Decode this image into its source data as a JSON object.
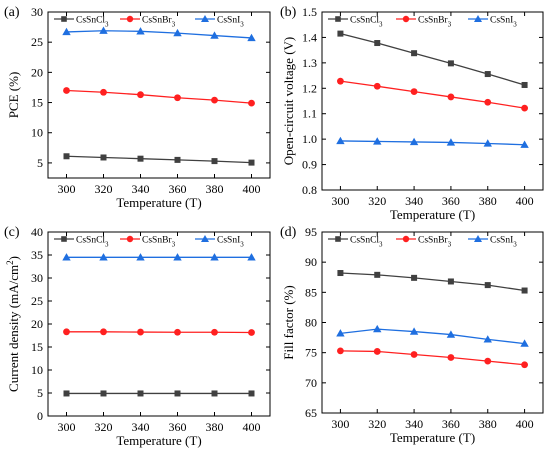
{
  "chart_data": [
    {
      "type": "line",
      "panel_label": "(a)",
      "xlabel": "Temperature (T)",
      "ylabel": "PCE (%)",
      "x": [
        300,
        320,
        340,
        360,
        380,
        400
      ],
      "xticks": [
        300,
        320,
        340,
        360,
        380,
        400
      ],
      "xlim": [
        290,
        410
      ],
      "ylim": [
        2.5,
        30
      ],
      "yticks": [
        5,
        10,
        15,
        20,
        25,
        30
      ],
      "ytick_labels": [
        "5",
        "10",
        "15",
        "20",
        "25",
        "30"
      ],
      "legend": "top",
      "series": [
        {
          "name": "CsSnCl",
          "sub": "3",
          "color": "#404040",
          "marker": "square",
          "values": [
            6.1,
            5.9,
            5.7,
            5.5,
            5.3,
            5.05
          ]
        },
        {
          "name": "CsSnBr",
          "sub": "3",
          "color": "#ff2020",
          "marker": "circle",
          "values": [
            17.0,
            16.7,
            16.3,
            15.8,
            15.4,
            14.9
          ]
        },
        {
          "name": "CsSnI",
          "sub": "3",
          "color": "#1f6fe0",
          "marker": "triangle",
          "values": [
            26.7,
            26.9,
            26.8,
            26.5,
            26.1,
            25.7
          ]
        }
      ]
    },
    {
      "type": "line",
      "panel_label": "(b)",
      "xlabel": "Temperature (T)",
      "ylabel": "Open-circuit voltage (V)",
      "x": [
        300,
        320,
        340,
        360,
        380,
        400
      ],
      "xticks": [
        300,
        320,
        340,
        360,
        380,
        400
      ],
      "xlim": [
        290,
        410
      ],
      "ylim": [
        0.8,
        1.5
      ],
      "yticks": [
        0.8,
        0.9,
        1.0,
        1.1,
        1.2,
        1.3,
        1.4,
        1.5
      ],
      "ytick_labels": [
        "0.8",
        "0.9",
        "1.0",
        "1.1",
        "1.2",
        "1.3",
        "1.4",
        "1.5"
      ],
      "legend": "top",
      "series": [
        {
          "name": "CsSnCl",
          "sub": "3",
          "color": "#404040",
          "marker": "square",
          "values": [
            1.415,
            1.378,
            1.338,
            1.298,
            1.256,
            1.213
          ]
        },
        {
          "name": "CsSnBr",
          "sub": "3",
          "color": "#ff2020",
          "marker": "circle",
          "values": [
            1.228,
            1.208,
            1.187,
            1.166,
            1.145,
            1.122
          ]
        },
        {
          "name": "CsSnI",
          "sub": "3",
          "color": "#1f6fe0",
          "marker": "triangle",
          "values": [
            0.993,
            0.991,
            0.989,
            0.987,
            0.983,
            0.978
          ]
        }
      ]
    },
    {
      "type": "line",
      "panel_label": "(c)",
      "xlabel": "Temperature (T)",
      "ylabel": "Current density (mA/cm",
      "ylabel_sup": "2",
      "ylabel_end": ")",
      "x": [
        300,
        320,
        340,
        360,
        380,
        400
      ],
      "xticks": [
        300,
        320,
        340,
        360,
        380,
        400
      ],
      "xlim": [
        290,
        410
      ],
      "ylim": [
        0,
        40
      ],
      "yticks": [
        0,
        5,
        10,
        15,
        20,
        25,
        30,
        35,
        40
      ],
      "ytick_labels": [
        "0",
        "5",
        "10",
        "15",
        "20",
        "25",
        "30",
        "35",
        "40"
      ],
      "legend": "top",
      "series": [
        {
          "name": "CsSnCl",
          "sub": "3",
          "color": "#404040",
          "marker": "square",
          "values": [
            4.9,
            4.9,
            4.9,
            4.9,
            4.9,
            4.9
          ]
        },
        {
          "name": "CsSnBr",
          "sub": "3",
          "color": "#ff2020",
          "marker": "circle",
          "values": [
            18.3,
            18.3,
            18.25,
            18.2,
            18.2,
            18.15
          ]
        },
        {
          "name": "CsSnI",
          "sub": "3",
          "color": "#1f6fe0",
          "marker": "triangle",
          "values": [
            34.5,
            34.5,
            34.5,
            34.5,
            34.5,
            34.5
          ]
        }
      ]
    },
    {
      "type": "line",
      "panel_label": "(d)",
      "xlabel": "Temperature (T)",
      "ylabel": "Fill factor (%)",
      "x": [
        300,
        320,
        340,
        360,
        380,
        400
      ],
      "xticks": [
        300,
        320,
        340,
        360,
        380,
        400
      ],
      "xlim": [
        290,
        410
      ],
      "ylim": [
        65,
        95
      ],
      "yticks": [
        65,
        70,
        75,
        80,
        85,
        90,
        95
      ],
      "ytick_labels": [
        "65",
        "70",
        "75",
        "80",
        "85",
        "90",
        "95"
      ],
      "legend": "top",
      "series": [
        {
          "name": "CsSnCl",
          "sub": "3",
          "color": "#404040",
          "marker": "square",
          "values": [
            88.2,
            87.9,
            87.4,
            86.8,
            86.2,
            85.3
          ]
        },
        {
          "name": "CsSnBr",
          "sub": "3",
          "color": "#ff2020",
          "marker": "circle",
          "values": [
            75.3,
            75.2,
            74.7,
            74.2,
            73.6,
            73.0
          ]
        },
        {
          "name": "CsSnI",
          "sub": "3",
          "color": "#1f6fe0",
          "marker": "triangle",
          "values": [
            78.2,
            78.9,
            78.5,
            78.0,
            77.2,
            76.5
          ]
        }
      ]
    }
  ]
}
